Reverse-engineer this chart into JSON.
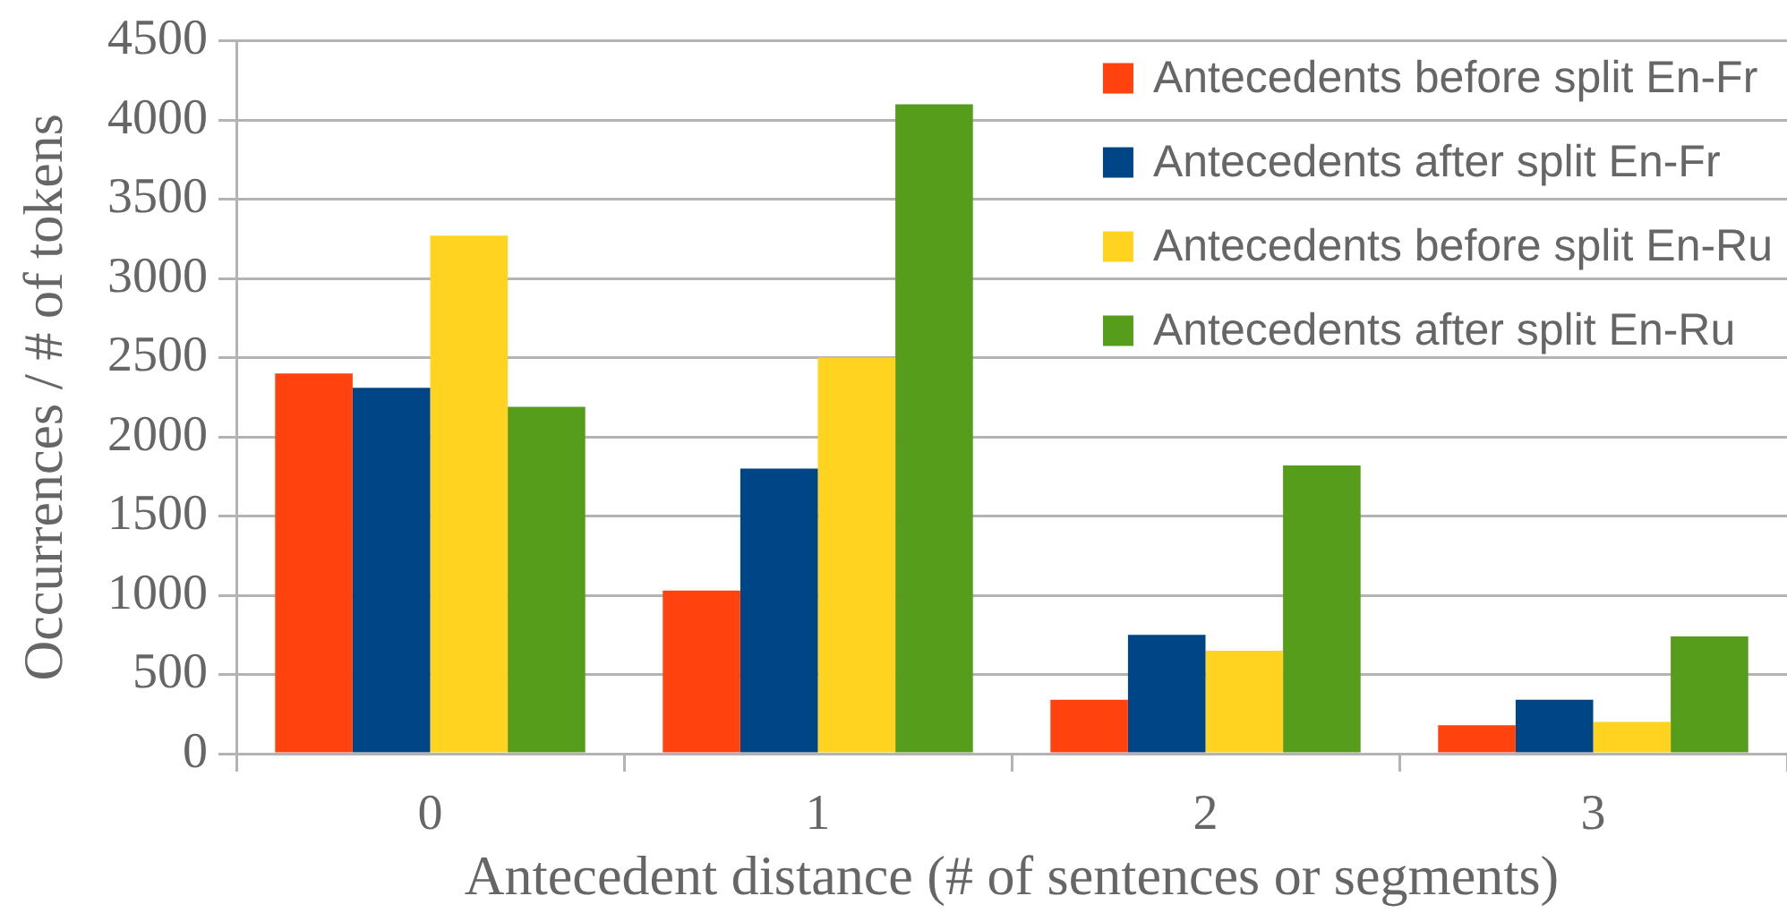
{
  "chart_data": {
    "type": "bar",
    "xlabel": "Antecedent distance (# of sentences or segments)",
    "ylabel": "Occurrences / # of tokens",
    "categories": [
      "0",
      "1",
      "2",
      "3"
    ],
    "series": [
      {
        "name": "Antecedents before split En-Fr",
        "color": "#ff420e",
        "values": [
          2400,
          1030,
          340,
          180
        ]
      },
      {
        "name": "Antecedents after split En-Fr",
        "color": "#004586",
        "values": [
          2310,
          1800,
          750,
          340
        ]
      },
      {
        "name": "Antecedents before split En-Ru",
        "color": "#ffd320",
        "values": [
          3270,
          2500,
          650,
          200
        ]
      },
      {
        "name": "Antecedents after split En-Ru",
        "color": "#579d1c",
        "values": [
          2190,
          4100,
          1820,
          740
        ]
      }
    ],
    "ylim": [
      0,
      4500
    ],
    "yticks": [
      0,
      500,
      1000,
      1500,
      2000,
      2500,
      3000,
      3500,
      4000,
      4500
    ],
    "grid": "y",
    "legend": "top right"
  }
}
